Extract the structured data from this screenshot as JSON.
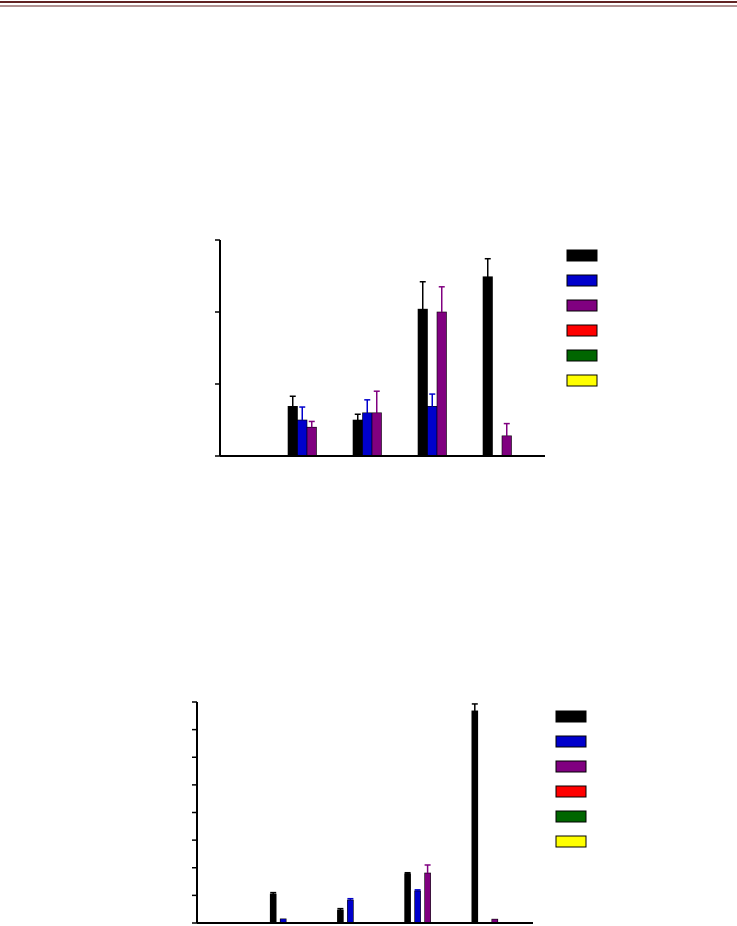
{
  "chart_data": [
    {
      "type": "bar",
      "categories": [
        null,
        null,
        null,
        null,
        null
      ],
      "ylim": [
        0,
        3
      ],
      "yticks": [
        0,
        1,
        2,
        3
      ],
      "series": [
        {
          "color": "#000000",
          "values": [
            0,
            0.69,
            0.5,
            2.04,
            2.49
          ],
          "errors": [
            null,
            0.14,
            0.08,
            0.38,
            0.25
          ]
        },
        {
          "color": "#0000cc",
          "values": [
            0,
            0.5,
            0.6,
            0.69,
            0
          ],
          "errors": [
            null,
            0.18,
            0.18,
            0.17,
            null
          ]
        },
        {
          "color": "#800080",
          "values": [
            0,
            0.4,
            0.6,
            2.0,
            0.28
          ],
          "errors": [
            null,
            0.08,
            0.3,
            0.35,
            0.17
          ]
        },
        {
          "color": "#ff0000",
          "values": [
            0,
            0,
            0,
            0,
            0
          ],
          "errors": [
            null,
            null,
            null,
            null,
            null
          ]
        },
        {
          "color": "#006600",
          "values": [
            0,
            0,
            0,
            0,
            0
          ],
          "errors": [
            null,
            null,
            null,
            null,
            null
          ]
        },
        {
          "color": "#ffff00",
          "values": [
            0,
            0,
            0,
            0,
            0
          ],
          "errors": [
            null,
            null,
            null,
            null,
            null
          ]
        }
      ]
    },
    {
      "type": "bar",
      "categories": [
        null,
        null,
        null,
        null,
        null
      ],
      "ylim": [
        0,
        8
      ],
      "yticks": [
        0,
        1,
        2,
        3,
        4,
        5,
        6,
        7,
        8
      ],
      "series": [
        {
          "color": "#000000",
          "values": [
            0,
            1.05,
            0.47,
            1.78,
            7.68
          ],
          "errors": [
            null,
            0.05,
            0.05,
            0.04,
            0.25
          ]
        },
        {
          "color": "#0000cc",
          "values": [
            0,
            0.15,
            0.83,
            1.16,
            0
          ],
          "errors": [
            null,
            null,
            0.05,
            0.04,
            null
          ]
        },
        {
          "color": "#800080",
          "values": [
            0,
            0,
            0,
            1.81,
            0.14
          ],
          "errors": [
            null,
            null,
            null,
            0.29,
            null
          ]
        },
        {
          "color": "#ff0000",
          "values": [
            0,
            0,
            0,
            0,
            0
          ],
          "errors": [
            null,
            null,
            null,
            null,
            null
          ]
        },
        {
          "color": "#006600",
          "values": [
            0,
            0,
            0,
            0,
            0
          ],
          "errors": [
            null,
            null,
            null,
            null,
            null
          ]
        },
        {
          "color": "#ffff00",
          "values": [
            0,
            0,
            0,
            0,
            0
          ],
          "errors": [
            null,
            null,
            null,
            null,
            null
          ]
        }
      ]
    }
  ]
}
